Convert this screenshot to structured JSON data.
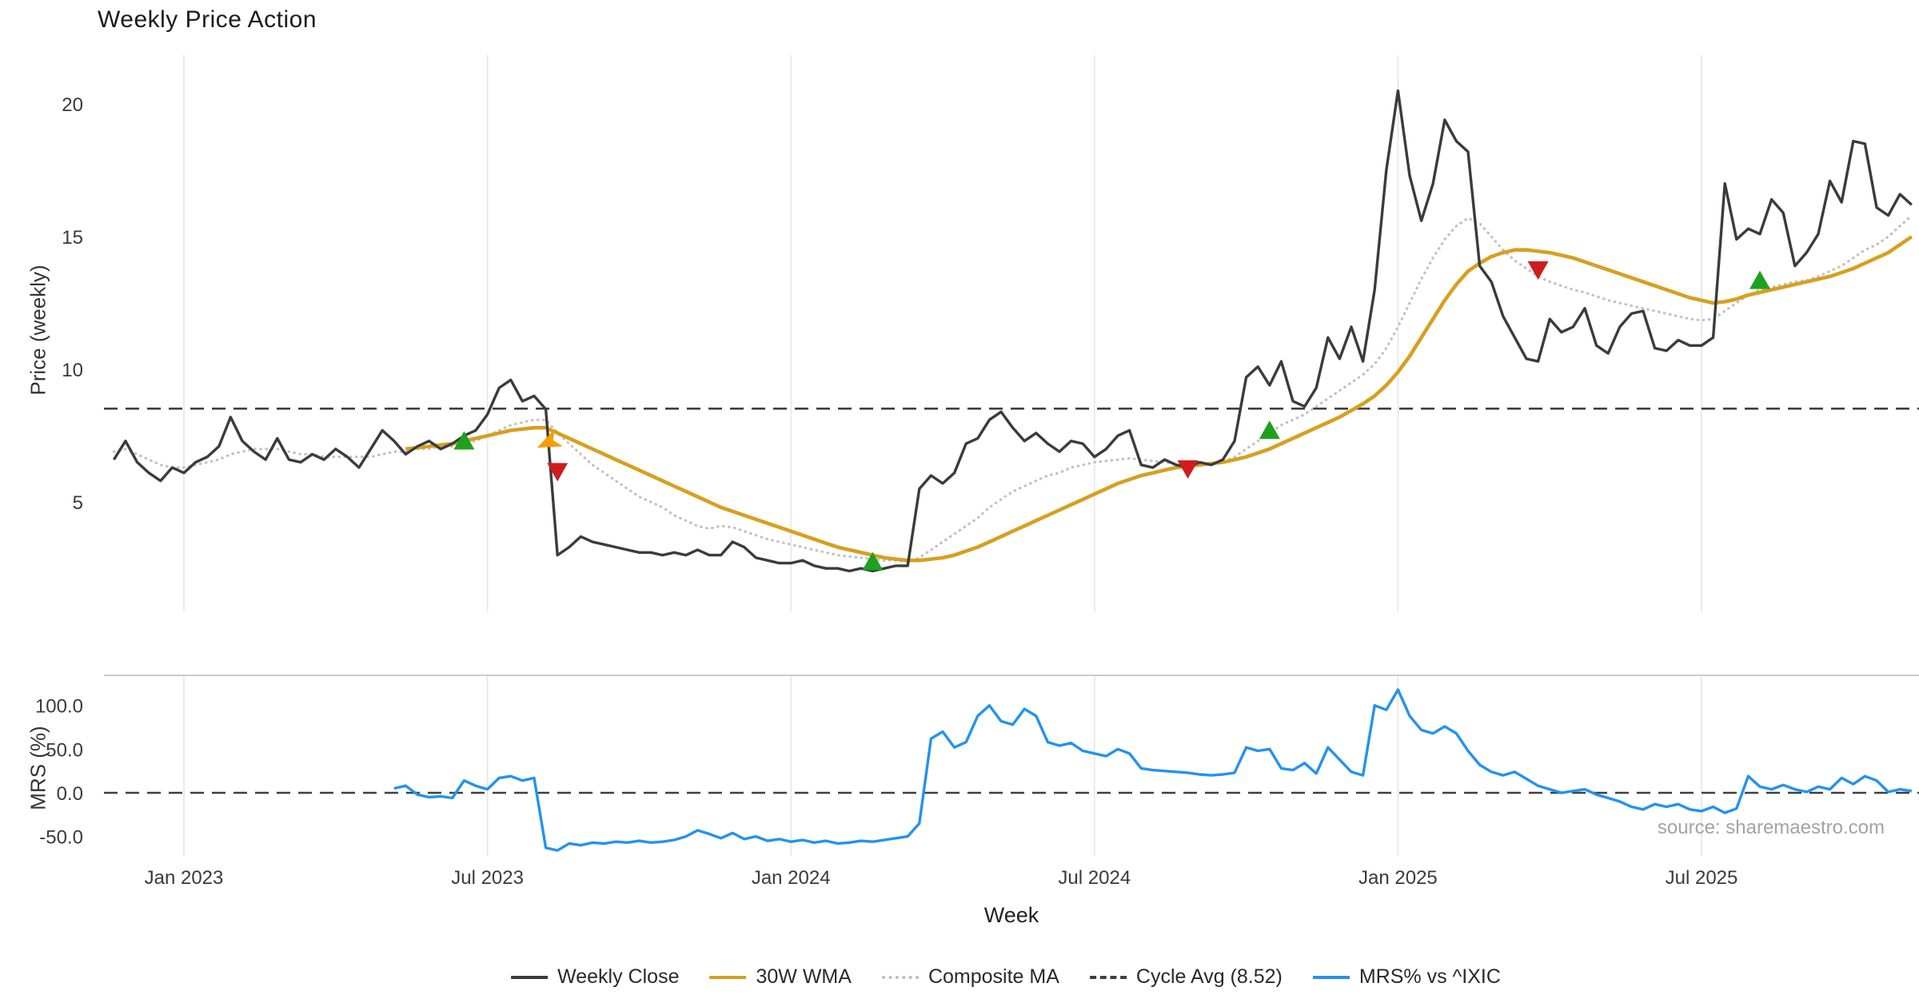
{
  "title": "Weekly Price Action",
  "xlabel": "Week",
  "source": "source: sharemaestro.com",
  "legend": [
    {
      "label": "Weekly Close",
      "color": "#3b3b3b",
      "style": "solid"
    },
    {
      "label": "30W WMA",
      "color": "#d6a020",
      "style": "solid"
    },
    {
      "label": "Composite MA",
      "color": "#bdbdbd",
      "style": "dotted"
    },
    {
      "label": "Cycle Avg (8.52)",
      "color": "#3f3f3f",
      "style": "dashed"
    },
    {
      "label": "MRS% vs ^IXIC",
      "color": "#2492ee",
      "style": "solid"
    }
  ],
  "chart_data": [
    {
      "type": "line",
      "name": "price-panel",
      "title": "Weekly Price Action",
      "ylabel": "Price (weekly)",
      "ylim": [
        0.88,
        21.84
      ],
      "grid": "vertical-only",
      "yticks": [
        {
          "value": 5,
          "label": "5"
        },
        {
          "value": 10,
          "label": "10"
        },
        {
          "value": 15,
          "label": "15"
        },
        {
          "value": 20,
          "label": "20"
        }
      ],
      "xticks": [
        {
          "week": 6,
          "label": "Jan 2023"
        },
        {
          "week": 32,
          "label": "Jul 2023"
        },
        {
          "week": 58,
          "label": "Jan 2024"
        },
        {
          "week": 84,
          "label": "Jul 2024"
        },
        {
          "week": 110,
          "label": "Jan 2025"
        },
        {
          "week": 136,
          "label": "Jul 2025"
        }
      ],
      "series": [
        {
          "name": "Cycle Avg (8.52)",
          "color": "#3f3f3f",
          "style": "dashed",
          "width": 2.6,
          "constant": 8.52
        },
        {
          "name": "Composite MA",
          "color": "#c2c2c2",
          "style": "dotted",
          "width": 3.2,
          "start_week": 0,
          "values": [
            6.9,
            7.0,
            6.8,
            6.6,
            6.4,
            6.3,
            6.3,
            6.4,
            6.5,
            6.6,
            6.8,
            6.9,
            7.0,
            7.0,
            7.0,
            6.9,
            6.8,
            6.8,
            6.7,
            6.7,
            6.7,
            6.7,
            6.7,
            6.8,
            6.9,
            6.9,
            7.0,
            7.0,
            7.1,
            7.1,
            7.2,
            7.3,
            7.5,
            7.7,
            7.9,
            8.0,
            8.1,
            8.1,
            7.6,
            7.2,
            6.8,
            6.4,
            6.1,
            5.8,
            5.5,
            5.2,
            5.0,
            4.8,
            4.5,
            4.3,
            4.1,
            4.0,
            4.1,
            4.05,
            3.9,
            3.75,
            3.6,
            3.5,
            3.4,
            3.3,
            3.2,
            3.1,
            3.0,
            2.95,
            2.9,
            2.85,
            2.8,
            2.8,
            2.75,
            2.9,
            3.2,
            3.5,
            3.8,
            4.1,
            4.4,
            4.8,
            5.1,
            5.4,
            5.6,
            5.8,
            6.0,
            6.1,
            6.3,
            6.4,
            6.5,
            6.55,
            6.6,
            6.65,
            6.6,
            6.55,
            6.5,
            6.45,
            6.4,
            6.4,
            6.45,
            6.5,
            6.7,
            7.0,
            7.3,
            7.6,
            7.9,
            8.1,
            8.3,
            8.6,
            8.9,
            9.2,
            9.5,
            9.8,
            10.2,
            10.8,
            11.6,
            12.5,
            13.4,
            14.2,
            14.9,
            15.4,
            15.7,
            15.5,
            15.0,
            14.5,
            14.1,
            13.8,
            13.5,
            13.3,
            13.15,
            13.0,
            12.9,
            12.75,
            12.6,
            12.5,
            12.4,
            12.3,
            12.2,
            12.1,
            12.0,
            11.9,
            11.85,
            11.9,
            12.2,
            12.5,
            12.8,
            13.0,
            13.1,
            13.2,
            13.3,
            13.35,
            13.5,
            13.7,
            13.9,
            14.2,
            14.5,
            14.7,
            15.0,
            15.4,
            15.8
          ]
        },
        {
          "name": "30W WMA",
          "color": "#d6a020",
          "style": "solid",
          "width": 4.6,
          "start_week": 25,
          "values": [
            7.0,
            7.05,
            7.1,
            7.15,
            7.2,
            7.3,
            7.4,
            7.5,
            7.6,
            7.7,
            7.75,
            7.8,
            7.8,
            7.6,
            7.4,
            7.2,
            7.0,
            6.8,
            6.6,
            6.4,
            6.2,
            6.0,
            5.8,
            5.6,
            5.4,
            5.2,
            5.0,
            4.8,
            4.65,
            4.5,
            4.35,
            4.2,
            4.05,
            3.9,
            3.75,
            3.6,
            3.45,
            3.3,
            3.2,
            3.1,
            3.0,
            2.9,
            2.85,
            2.8,
            2.8,
            2.85,
            2.9,
            3.0,
            3.15,
            3.3,
            3.5,
            3.7,
            3.9,
            4.1,
            4.3,
            4.5,
            4.7,
            4.9,
            5.1,
            5.3,
            5.5,
            5.7,
            5.85,
            6.0,
            6.1,
            6.2,
            6.3,
            6.35,
            6.4,
            6.45,
            6.5,
            6.6,
            6.7,
            6.85,
            7.0,
            7.2,
            7.4,
            7.6,
            7.8,
            8.0,
            8.2,
            8.45,
            8.7,
            9.0,
            9.4,
            9.9,
            10.5,
            11.2,
            11.9,
            12.6,
            13.2,
            13.7,
            14.0,
            14.25,
            14.4,
            14.5,
            14.5,
            14.45,
            14.4,
            14.3,
            14.2,
            14.05,
            13.9,
            13.75,
            13.6,
            13.45,
            13.3,
            13.15,
            13.0,
            12.85,
            12.7,
            12.6,
            12.5,
            12.55,
            12.65,
            12.8,
            12.9,
            13.0,
            13.1,
            13.2,
            13.3,
            13.4,
            13.5,
            13.65,
            13.8,
            14.0,
            14.2,
            14.4,
            14.7,
            15.0
          ]
        },
        {
          "name": "Weekly Close",
          "color": "#3b3b3b",
          "style": "solid",
          "width": 3.4,
          "start_week": 0,
          "values": [
            6.6,
            7.3,
            6.5,
            6.1,
            5.8,
            6.3,
            6.1,
            6.5,
            6.7,
            7.1,
            8.2,
            7.3,
            6.9,
            6.6,
            7.4,
            6.6,
            6.5,
            6.8,
            6.6,
            7.0,
            6.7,
            6.3,
            7.0,
            7.7,
            7.3,
            6.8,
            7.1,
            7.3,
            7.0,
            7.2,
            7.5,
            7.7,
            8.3,
            9.3,
            9.6,
            8.8,
            9.0,
            8.5,
            3.0,
            3.3,
            3.7,
            3.5,
            3.4,
            3.3,
            3.2,
            3.1,
            3.1,
            3.0,
            3.1,
            3.0,
            3.2,
            3.0,
            3.0,
            3.5,
            3.3,
            2.9,
            2.8,
            2.7,
            2.7,
            2.8,
            2.6,
            2.5,
            2.5,
            2.4,
            2.5,
            2.4,
            2.5,
            2.6,
            2.6,
            5.5,
            6.0,
            5.7,
            6.1,
            7.2,
            7.4,
            8.1,
            8.4,
            7.8,
            7.3,
            7.6,
            7.2,
            6.9,
            7.3,
            7.2,
            6.7,
            7.0,
            7.5,
            7.7,
            6.4,
            6.3,
            6.6,
            6.4,
            6.3,
            6.5,
            6.4,
            6.6,
            7.3,
            9.7,
            10.1,
            9.4,
            10.3,
            8.8,
            8.6,
            9.3,
            11.2,
            10.4,
            11.6,
            10.3,
            13.0,
            17.5,
            20.5,
            17.3,
            15.6,
            17.0,
            19.4,
            18.6,
            18.2,
            13.9,
            13.3,
            12.0,
            11.2,
            10.4,
            10.3,
            11.9,
            11.4,
            11.6,
            12.3,
            10.9,
            10.6,
            11.6,
            12.1,
            12.2,
            10.8,
            10.7,
            11.1,
            10.9,
            10.9,
            11.2,
            17.0,
            14.9,
            15.3,
            15.1,
            16.4,
            15.9,
            13.9,
            14.4,
            15.1,
            17.1,
            16.3,
            18.6,
            18.5,
            16.1,
            15.8,
            16.6,
            16.2
          ]
        }
      ],
      "markers": {
        "buy-signal": {
          "shape": "triangle-up",
          "color": "#1fa01f",
          "points": [
            {
              "week": 30,
              "value": 7.25
            },
            {
              "week": 65,
              "value": 2.7
            },
            {
              "week": 99,
              "value": 7.65
            },
            {
              "week": 141,
              "value": 13.3
            }
          ]
        },
        "sell-signal": {
          "shape": "triangle-down",
          "color": "#cf1d1d",
          "points": [
            {
              "week": 38,
              "value": 6.2
            },
            {
              "week": 92,
              "value": 6.3
            },
            {
              "week": 122,
              "value": 13.8
            }
          ]
        },
        "wma-cross": {
          "shape": "arrow-down-left",
          "color": "#f59d00",
          "points": [
            {
              "week": 37,
              "value": 7.2
            }
          ]
        }
      }
    },
    {
      "type": "line",
      "name": "mrs-panel",
      "ylabel": "MRS (%)",
      "ylim": [
        -72.3,
        134.5
      ],
      "grid": "vertical-only",
      "yticks": [
        {
          "value": -50,
          "label": "-50.0"
        },
        {
          "value": 0,
          "label": "0.0"
        },
        {
          "value": 50,
          "label": "50.0"
        },
        {
          "value": 100,
          "label": "100.0"
        }
      ],
      "series": [
        {
          "name": "Zero Line",
          "color": "#3f3f3f",
          "style": "dashed",
          "width": 2.6,
          "constant": 0
        },
        {
          "name": "MRS% vs ^IXIC",
          "color": "#2492ee",
          "style": "solid",
          "width": 3.4,
          "start_week": 24,
          "values": [
            5,
            8,
            -2,
            -5,
            -4,
            -6,
            14,
            8,
            4,
            17,
            19,
            14,
            17,
            -63,
            -66,
            -58,
            -60,
            -57,
            -58,
            -56,
            -57,
            -55,
            -57,
            -56,
            -54,
            -50,
            -43,
            -47,
            -52,
            -46,
            -53,
            -50,
            -55,
            -53,
            -56,
            -54,
            -57,
            -55,
            -58,
            -57,
            -55,
            -56,
            -54,
            -52,
            -50,
            -35,
            62,
            70,
            52,
            58,
            88,
            100,
            82,
            78,
            96,
            88,
            58,
            54,
            57,
            48,
            45,
            42,
            50,
            45,
            28,
            26,
            25,
            24,
            23,
            21,
            20,
            21,
            23,
            52,
            48,
            50,
            28,
            26,
            34,
            22,
            52,
            38,
            24,
            20,
            100,
            95,
            118,
            88,
            72,
            68,
            76,
            68,
            48,
            32,
            24,
            20,
            24,
            16,
            8,
            4,
            0,
            2,
            4,
            -2,
            -6,
            -10,
            -16,
            -19,
            -13,
            -16,
            -13,
            -19,
            -21,
            -16,
            -23,
            -18,
            19,
            7,
            4,
            9,
            4,
            1,
            7,
            4,
            17,
            10,
            19,
            14,
            1,
            4,
            2
          ]
        }
      ]
    }
  ]
}
